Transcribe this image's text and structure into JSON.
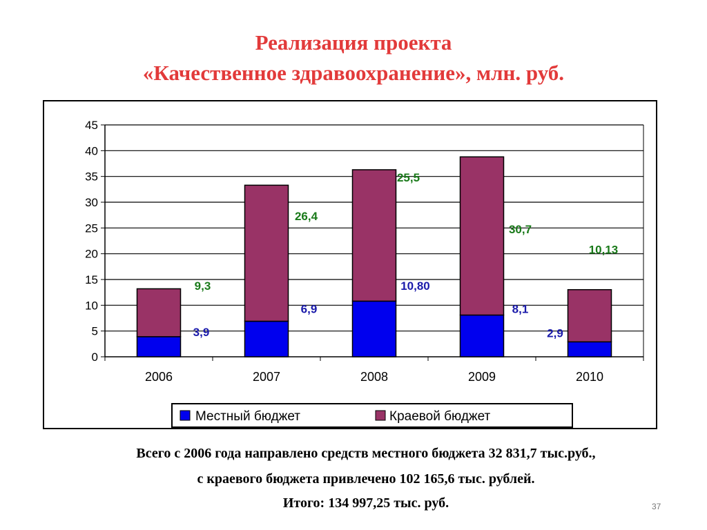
{
  "slide": {
    "title_line1": "Реализация проекта",
    "title_line2": "«Качественное здравоохранение», млн. руб.",
    "footer_line1": "Всего с 2006 года направлено средств местного бюджета 32 831,7 тыс.руб.,",
    "footer_line2": "с краевого бюджета привлечено 102 165,6 тыс. рублей.",
    "footer_line3": "Итого: 134 997,25 тыс. руб.",
    "page_number": "37"
  },
  "chart_data": {
    "type": "bar",
    "stacked": true,
    "categories": [
      "2006",
      "2007",
      "2008",
      "2009",
      "2010"
    ],
    "series": [
      {
        "name": "Местный бюджет",
        "color": "#0000ee",
        "label_color": "#1a1aaa",
        "values": [
          3.9,
          6.9,
          10.8,
          8.1,
          2.9
        ],
        "labels": [
          "3,9",
          "6,9",
          "10,80",
          "8,1",
          "2,9"
        ]
      },
      {
        "name": "Краевой бюджет",
        "color": "#993366",
        "label_color": "#1a7a1a",
        "values": [
          9.3,
          26.4,
          25.5,
          30.7,
          10.13
        ],
        "labels": [
          "9,3",
          "26,4",
          "25,5",
          "30,7",
          "10,13"
        ]
      }
    ],
    "ylim": [
      0,
      45
    ],
    "yticks": [
      "0",
      "5",
      "10",
      "15",
      "20",
      "25",
      "30",
      "35",
      "40",
      "45"
    ],
    "grid": true,
    "legend": "bottom",
    "xlabel": "",
    "ylabel": ""
  }
}
